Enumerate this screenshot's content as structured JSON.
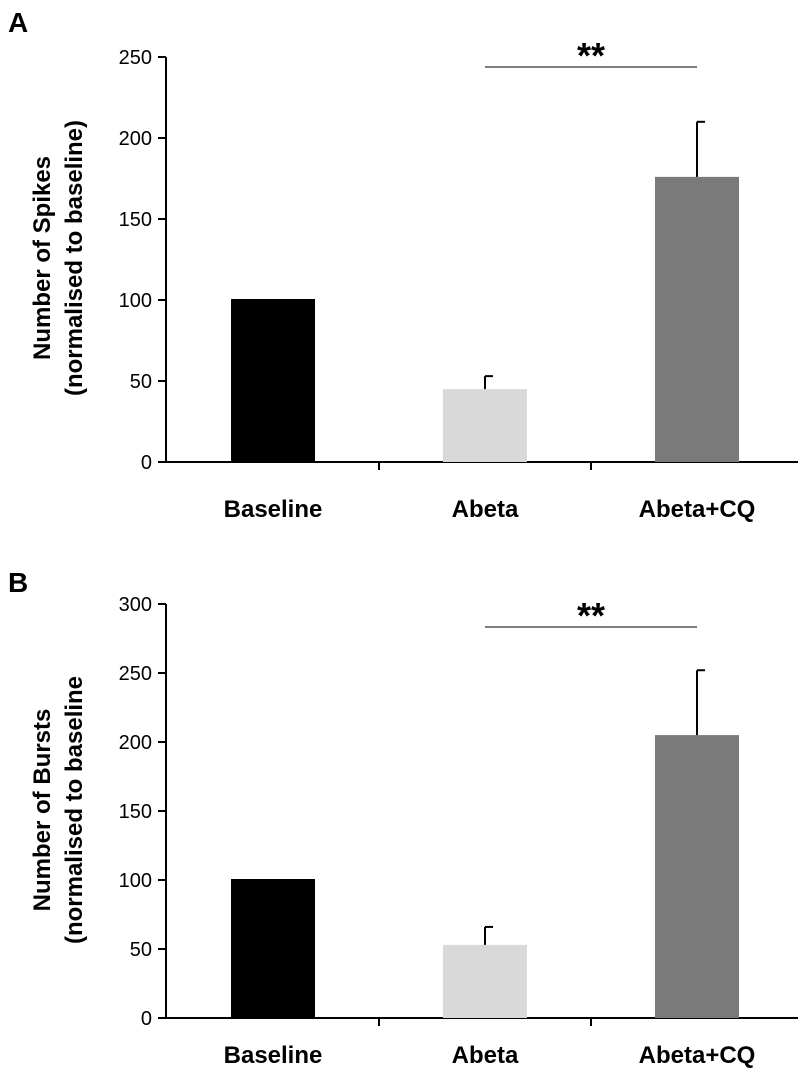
{
  "chart_data": [
    {
      "type": "bar",
      "panel": "A",
      "categories": [
        "Baseline",
        "Abeta",
        "Abeta+CQ"
      ],
      "values": [
        100,
        45,
        176
      ],
      "error": [
        0,
        8,
        34
      ],
      "colors": [
        "#000000",
        "#d9d9d9",
        "#7a7a7a"
      ],
      "ylabel_line1": "Number of Spikes",
      "ylabel_line2": "(normalised to baseline)",
      "xlabel": "",
      "ylim": [
        0,
        250
      ],
      "yticks": [
        0,
        50,
        100,
        150,
        200,
        250
      ],
      "significance": {
        "from": "Abeta",
        "to": "Abeta+CQ",
        "label": "**"
      }
    },
    {
      "type": "bar",
      "panel": "B",
      "categories": [
        "Baseline",
        "Abeta",
        "Abeta+CQ"
      ],
      "values": [
        100,
        53,
        205
      ],
      "error": [
        0,
        13,
        47
      ],
      "colors": [
        "#000000",
        "#d9d9d9",
        "#7a7a7a"
      ],
      "ylabel_line1": "Number of Bursts",
      "ylabel_line2": "(normalised to baseline",
      "xlabel": "",
      "ylim": [
        0,
        300
      ],
      "yticks": [
        0,
        50,
        100,
        150,
        200,
        250,
        300
      ],
      "significance": {
        "from": "Abeta",
        "to": "Abeta+CQ",
        "label": "**"
      }
    }
  ]
}
